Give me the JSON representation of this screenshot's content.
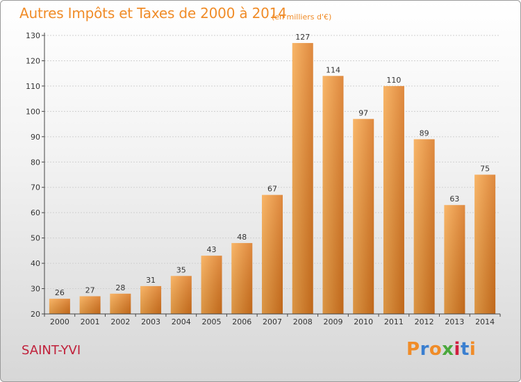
{
  "header": {
    "title": "Autres Impôts et Taxes de 2000 à 2014",
    "subtitle": "(en milliers d'€)"
  },
  "footer": {
    "town": "SAINT-YVI",
    "logo_text": "Proxiti",
    "logo_colors": [
      "#f08c28",
      "#3a7fd0",
      "#f08c28",
      "#4aa83c",
      "#d02040",
      "#3a7fd0",
      "#f08c28"
    ]
  },
  "colors": {
    "bar_light": "#f7a94e",
    "bar_dark": "#d9751e",
    "grid": "#d0d0d0",
    "axis": "#444444",
    "label": "#333333"
  },
  "chart_data": {
    "type": "bar",
    "title": "Autres Impôts et Taxes de 2000 à 2014",
    "subtitle": "(en milliers d'€)",
    "categories": [
      "2000",
      "2001",
      "2002",
      "2003",
      "2004",
      "2005",
      "2006",
      "2007",
      "2008",
      "2009",
      "2010",
      "2011",
      "2012",
      "2013",
      "2014"
    ],
    "values": [
      26,
      27,
      28,
      31,
      35,
      43,
      48,
      67,
      127,
      114,
      97,
      110,
      89,
      63,
      75
    ],
    "ylim": [
      20,
      130
    ],
    "yticks": [
      20,
      30,
      40,
      50,
      60,
      70,
      80,
      90,
      100,
      110,
      120,
      130
    ],
    "grid": true,
    "legend": "none"
  }
}
